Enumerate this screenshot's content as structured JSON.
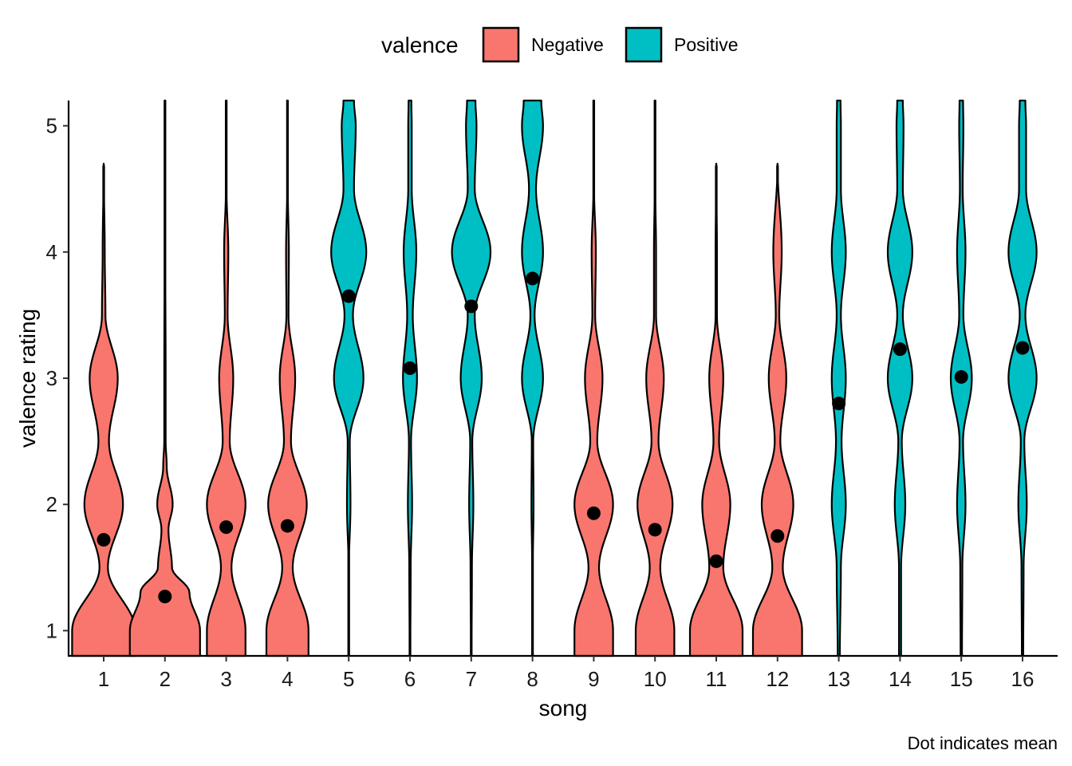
{
  "chart_data": {
    "type": "violin",
    "xlabel": "song",
    "ylabel": "valence rating",
    "caption": "Dot indicates mean",
    "ylim": [
      0.8,
      5.2
    ],
    "yticks": [
      1,
      2,
      3,
      4,
      5
    ],
    "categories": [
      "1",
      "2",
      "3",
      "4",
      "5",
      "6",
      "7",
      "8",
      "9",
      "10",
      "11",
      "12",
      "13",
      "14",
      "15",
      "16"
    ],
    "legend": {
      "title": "valence",
      "position": "top",
      "entries": [
        {
          "name": "Negative",
          "color": "#F8766D"
        },
        {
          "name": "Positive",
          "color": "#00BFC4"
        }
      ]
    },
    "series": [
      {
        "song": "1",
        "valence": "Negative",
        "mean": 1.72,
        "ymax": 4.7,
        "density": [
          [
            1,
            0.9
          ],
          [
            1.5,
            0.12
          ],
          [
            2,
            0.55
          ],
          [
            2.5,
            0.15
          ],
          [
            3,
            0.4
          ],
          [
            3.5,
            0.05
          ],
          [
            4,
            0.03
          ],
          [
            4.7,
            0
          ]
        ]
      },
      {
        "song": "2",
        "valence": "Negative",
        "mean": 1.27,
        "ymax": 5.2,
        "density": [
          [
            1,
            1.0
          ],
          [
            1.3,
            0.7
          ],
          [
            1.5,
            0.2
          ],
          [
            1.8,
            0.1
          ],
          [
            2,
            0.22
          ],
          [
            2.3,
            0.05
          ],
          [
            2.5,
            0.02
          ],
          [
            3,
            0.02
          ],
          [
            4,
            0.01
          ],
          [
            5,
            0.005
          ]
        ]
      },
      {
        "song": "3",
        "valence": "Negative",
        "mean": 1.82,
        "ymax": 5.2,
        "density": [
          [
            1,
            0.55
          ],
          [
            1.5,
            0.15
          ],
          [
            2,
            0.55
          ],
          [
            2.5,
            0.1
          ],
          [
            3,
            0.2
          ],
          [
            3.5,
            0.04
          ],
          [
            4,
            0.06
          ],
          [
            4.5,
            0.01
          ],
          [
            5,
            0.005
          ]
        ]
      },
      {
        "song": "4",
        "valence": "Negative",
        "mean": 1.83,
        "ymax": 5.2,
        "density": [
          [
            1,
            0.6
          ],
          [
            1.5,
            0.15
          ],
          [
            2,
            0.55
          ],
          [
            2.5,
            0.1
          ],
          [
            3,
            0.22
          ],
          [
            3.5,
            0.03
          ],
          [
            4,
            0.04
          ],
          [
            4.5,
            0.01
          ],
          [
            5,
            0.005
          ]
        ]
      },
      {
        "song": "5",
        "valence": "Positive",
        "mean": 3.65,
        "ymax": 5.2,
        "density": [
          [
            0.8,
            0
          ],
          [
            1.5,
            0.005
          ],
          [
            2,
            0.05
          ],
          [
            2.5,
            0.03
          ],
          [
            3,
            0.42
          ],
          [
            3.5,
            0.12
          ],
          [
            4,
            0.5
          ],
          [
            4.5,
            0.15
          ],
          [
            5,
            0.2
          ],
          [
            5.2,
            0.15
          ]
        ]
      },
      {
        "song": "6",
        "valence": "Positive",
        "mean": 3.08,
        "ymax": 5.2,
        "density": [
          [
            0.8,
            0.01
          ],
          [
            1.5,
            0.02
          ],
          [
            2,
            0.06
          ],
          [
            2.5,
            0.03
          ],
          [
            3,
            0.2
          ],
          [
            3.5,
            0.08
          ],
          [
            4,
            0.18
          ],
          [
            4.5,
            0.05
          ],
          [
            5,
            0.05
          ],
          [
            5.2,
            0.04
          ]
        ]
      },
      {
        "song": "7",
        "valence": "Positive",
        "mean": 3.57,
        "ymax": 5.2,
        "density": [
          [
            0.8,
            0.01
          ],
          [
            1.5,
            0.02
          ],
          [
            2,
            0.06
          ],
          [
            2.5,
            0.03
          ],
          [
            3,
            0.3
          ],
          [
            3.5,
            0.1
          ],
          [
            4,
            0.55
          ],
          [
            4.5,
            0.1
          ],
          [
            5,
            0.15
          ],
          [
            5.2,
            0.12
          ]
        ]
      },
      {
        "song": "8",
        "valence": "Positive",
        "mean": 3.79,
        "ymax": 5.2,
        "density": [
          [
            0.8,
            0.01
          ],
          [
            1.5,
            0.01
          ],
          [
            2,
            0.03
          ],
          [
            2.5,
            0.02
          ],
          [
            3,
            0.3
          ],
          [
            3.5,
            0.06
          ],
          [
            4,
            0.3
          ],
          [
            4.5,
            0.1
          ],
          [
            5,
            0.3
          ],
          [
            5.2,
            0.25
          ]
        ]
      },
      {
        "song": "9",
        "valence": "Negative",
        "mean": 1.93,
        "ymax": 5.2,
        "density": [
          [
            1,
            0.55
          ],
          [
            1.5,
            0.15
          ],
          [
            2,
            0.55
          ],
          [
            2.5,
            0.1
          ],
          [
            3,
            0.25
          ],
          [
            3.5,
            0.04
          ],
          [
            4,
            0.06
          ],
          [
            4.5,
            0.01
          ],
          [
            5,
            0.005
          ]
        ]
      },
      {
        "song": "10",
        "valence": "Negative",
        "mean": 1.8,
        "ymax": 5.2,
        "density": [
          [
            1,
            0.55
          ],
          [
            1.5,
            0.15
          ],
          [
            2,
            0.5
          ],
          [
            2.5,
            0.1
          ],
          [
            3,
            0.25
          ],
          [
            3.5,
            0.03
          ],
          [
            4,
            0.03
          ],
          [
            4.5,
            0.01
          ],
          [
            5,
            0.005
          ]
        ]
      },
      {
        "song": "11",
        "valence": "Negative",
        "mean": 1.55,
        "ymax": 4.7,
        "density": [
          [
            1,
            0.75
          ],
          [
            1.5,
            0.2
          ],
          [
            2,
            0.4
          ],
          [
            2.5,
            0.08
          ],
          [
            3,
            0.2
          ],
          [
            3.5,
            0.02
          ],
          [
            4,
            0.02
          ],
          [
            4.7,
            0
          ]
        ]
      },
      {
        "song": "12",
        "valence": "Negative",
        "mean": 1.75,
        "ymax": 4.7,
        "density": [
          [
            1,
            0.7
          ],
          [
            1.5,
            0.15
          ],
          [
            2,
            0.45
          ],
          [
            2.5,
            0.08
          ],
          [
            3,
            0.25
          ],
          [
            3.5,
            0.05
          ],
          [
            4,
            0.12
          ],
          [
            4.7,
            0
          ]
        ]
      },
      {
        "song": "13",
        "valence": "Positive",
        "mean": 2.8,
        "ymax": 5.2,
        "density": [
          [
            0.8,
            0.03
          ],
          [
            1.5,
            0.06
          ],
          [
            2,
            0.2
          ],
          [
            2.5,
            0.08
          ],
          [
            3,
            0.2
          ],
          [
            3.5,
            0.06
          ],
          [
            4,
            0.2
          ],
          [
            4.5,
            0.06
          ],
          [
            5,
            0.06
          ],
          [
            5.2,
            0.05
          ]
        ]
      },
      {
        "song": "14",
        "valence": "Positive",
        "mean": 3.23,
        "ymax": 5.2,
        "density": [
          [
            0.8,
            0.03
          ],
          [
            1.5,
            0.03
          ],
          [
            2,
            0.15
          ],
          [
            2.5,
            0.05
          ],
          [
            3,
            0.35
          ],
          [
            3.5,
            0.08
          ],
          [
            4,
            0.35
          ],
          [
            4.5,
            0.08
          ],
          [
            5,
            0.1
          ],
          [
            5.2,
            0.08
          ]
        ]
      },
      {
        "song": "15",
        "valence": "Positive",
        "mean": 3.01,
        "ymax": 5.2,
        "density": [
          [
            0.8,
            0.02
          ],
          [
            1.5,
            0.03
          ],
          [
            2,
            0.12
          ],
          [
            2.5,
            0.05
          ],
          [
            3,
            0.3
          ],
          [
            3.5,
            0.06
          ],
          [
            4,
            0.12
          ],
          [
            4.5,
            0.04
          ],
          [
            5,
            0.06
          ],
          [
            5.2,
            0.05
          ]
        ]
      },
      {
        "song": "16",
        "valence": "Positive",
        "mean": 3.24,
        "ymax": 5.2,
        "density": [
          [
            0.8,
            0.02
          ],
          [
            1.5,
            0.03
          ],
          [
            2,
            0.12
          ],
          [
            2.5,
            0.05
          ],
          [
            3,
            0.4
          ],
          [
            3.5,
            0.08
          ],
          [
            4,
            0.4
          ],
          [
            4.5,
            0.1
          ],
          [
            5,
            0.1
          ],
          [
            5.2,
            0.08
          ]
        ]
      }
    ]
  }
}
